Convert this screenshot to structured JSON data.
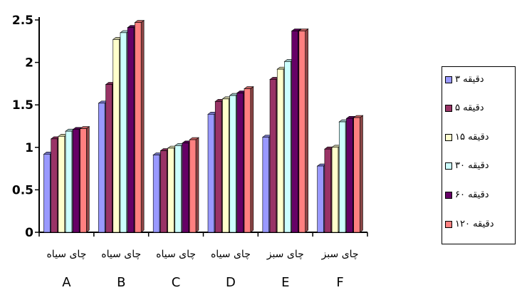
{
  "chart_data": {
    "type": "bar",
    "title": "",
    "xlabel": "",
    "ylabel": "",
    "ylim": [
      0,
      2.5
    ],
    "yticks": [
      0,
      0.5,
      1,
      1.5,
      2,
      2.5
    ],
    "ytick_labels": [
      "0",
      "0.5",
      "1",
      "1.5",
      "2",
      "2.5"
    ],
    "grid": false,
    "legend_position": "right",
    "categories": [
      "A",
      "B",
      "C",
      "D",
      "E",
      "F"
    ],
    "category_sublabels": [
      "چای سیاه",
      "چای سیاه",
      "چای سیاه",
      "چای سیاه",
      "چای سبز",
      "چای  سبز"
    ],
    "series": [
      {
        "name": "دقیقه ۳",
        "color": "#9999ff",
        "values": [
          0.92,
          1.52,
          0.91,
          1.39,
          1.12,
          0.78
        ]
      },
      {
        "name": "دقیقه ۵",
        "color": "#993366",
        "values": [
          1.1,
          1.74,
          0.96,
          1.54,
          1.8,
          0.98
        ]
      },
      {
        "name": "دقیقه ۱۵",
        "color": "#ffffcc",
        "values": [
          1.13,
          2.27,
          0.99,
          1.57,
          1.92,
          1.0
        ]
      },
      {
        "name": "دقیقه ۳۰",
        "color": "#ccffff",
        "values": [
          1.19,
          2.35,
          1.02,
          1.61,
          2.01,
          1.3
        ]
      },
      {
        "name": "دقیقه ۶۰",
        "color": "#660066",
        "values": [
          1.21,
          2.41,
          1.05,
          1.64,
          2.37,
          1.34
        ]
      },
      {
        "name": "دقیقه ۱۲۰",
        "color": "#ff8080",
        "values": [
          1.22,
          2.47,
          1.09,
          1.69,
          2.37,
          1.35
        ]
      }
    ]
  }
}
